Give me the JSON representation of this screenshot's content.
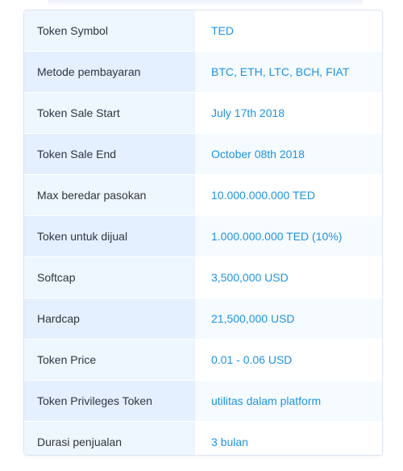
{
  "token_details": {
    "rows": [
      {
        "label": "Token Symbol",
        "value": "TED"
      },
      {
        "label": "Metode pembayaran",
        "value": "BTC, ETH, LTC, BCH, FIAT"
      },
      {
        "label": "Token Sale Start",
        "value": "July 17th 2018"
      },
      {
        "label": "Token Sale End",
        "value": "October 08th 2018"
      },
      {
        "label": "Max beredar pasokan",
        "value": "10.000.000.000 TED"
      },
      {
        "label": "Token untuk dijual",
        "value": "1.000.000.000 TED (10%)"
      },
      {
        "label": "Softcap",
        "value": "3,500,000 USD"
      },
      {
        "label": "Hardcap",
        "value": "21,500,000 USD"
      },
      {
        "label": "Token Price",
        "value": "0.01 - 0.06 USD"
      },
      {
        "label": "Token Privileges Token",
        "value": "utilitas dalam platform"
      },
      {
        "label": "Durasi penjualan",
        "value": "3 bulan"
      }
    ]
  },
  "colors": {
    "label_text": "#2f3542",
    "value_text": "#1e93e6",
    "label_bg": "#eef6ff",
    "label_bg_alt": "#e4f0ff",
    "value_bg_alt": "#f6fbff",
    "border": "#dfe6f1"
  }
}
